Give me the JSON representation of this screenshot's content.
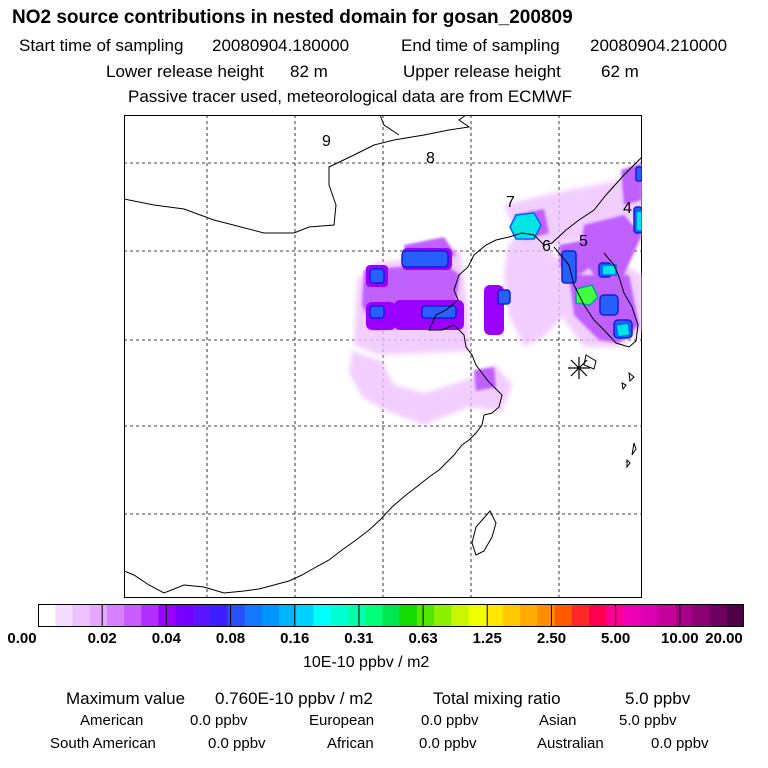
{
  "header": {
    "title": "NO2 source contributions in nested domain for gosan_200809",
    "start_label": "Start time of sampling",
    "start_value": "20080904.180000",
    "end_label": "End time of sampling",
    "end_value": "20080904.210000",
    "lower_label": "Lower release height",
    "lower_value": "82 m",
    "upper_label": "Upper release height",
    "upper_value": "62 m",
    "tracer_note": "Passive tracer used, meteorological data are from ECMWF"
  },
  "map": {
    "region_labels": [
      "9",
      "8",
      "7",
      "6",
      "5",
      "4"
    ],
    "receptor_icon": "asterisk-receptor-marker"
  },
  "colorbar": {
    "unit": "10E-10 ppbv / m2",
    "ticks": [
      "0.00",
      "0.02",
      "0.04",
      "0.08",
      "0.16",
      "0.31",
      "0.63",
      "1.25",
      "2.50",
      "5.00",
      "10.00",
      "20.00"
    ],
    "colors": [
      "#ffffff",
      "#f5dcff",
      "#eec2ff",
      "#e6a8ff",
      "#d980ff",
      "#c85cff",
      "#b030ff",
      "#9a00ff",
      "#7800ff",
      "#5a14ff",
      "#3c1eff",
      "#2850ff",
      "#1478ff",
      "#0096ff",
      "#00b4ff",
      "#00d2ff",
      "#00ffff",
      "#00ffd2",
      "#00ffaa",
      "#00ff78",
      "#00e650",
      "#14dc00",
      "#50e600",
      "#8cf000",
      "#c8f500",
      "#f0ff00",
      "#ffe600",
      "#ffc800",
      "#ffaa00",
      "#ff8c00",
      "#ff5a00",
      "#ff2828",
      "#ff0050",
      "#ff0096",
      "#f000b4",
      "#dc00b4",
      "#c8009b",
      "#aa0087",
      "#8c0073",
      "#6e005f",
      "#500046"
    ]
  },
  "summary": {
    "max_label": "Maximum value",
    "max_value": "0.760E-10 ppbv / m2",
    "total_label": "Total mixing ratio",
    "total_value": "5.0 ppbv",
    "regions": [
      {
        "name": "American",
        "value": "0.0 ppbv"
      },
      {
        "name": "European",
        "value": "0.0 ppbv"
      },
      {
        "name": "Asian",
        "value": "5.0 ppbv"
      },
      {
        "name": "South American",
        "value": "0.0 ppbv"
      },
      {
        "name": "African",
        "value": "0.0 ppbv"
      },
      {
        "name": "Australian",
        "value": "0.0 ppbv"
      }
    ]
  }
}
